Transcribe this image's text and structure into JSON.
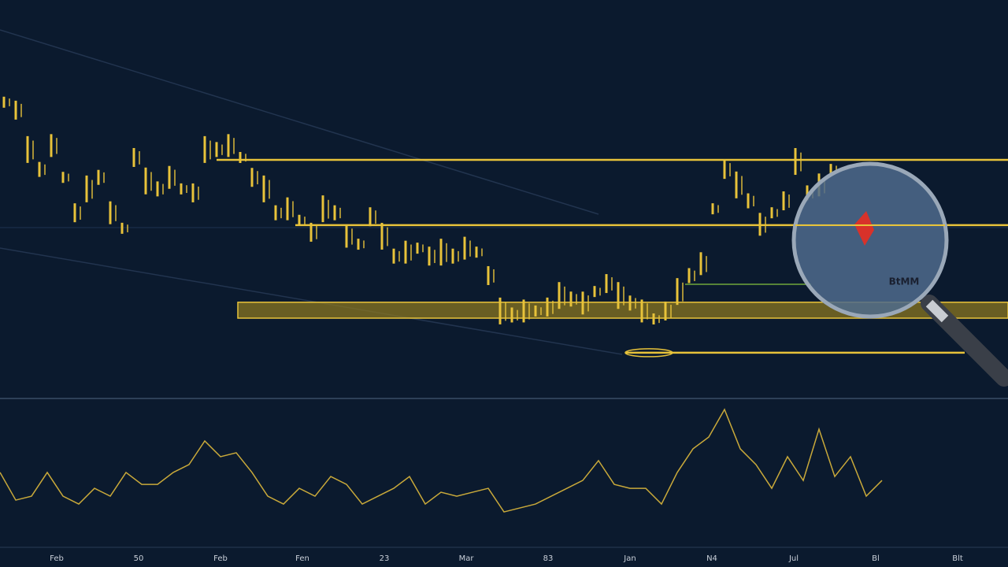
{
  "chart_data": [
    {
      "type": "price-ticks",
      "color": "#e8c33a",
      "ylim": [
        0,
        100
      ],
      "values": [
        74.3,
        72.3,
        62.4,
        57.4,
        63.4,
        55.4,
        46.5,
        52.5,
        55.4,
        46.5,
        42.6,
        60.4,
        54.5,
        52.5,
        55.4,
        52.5,
        51.5,
        62.4,
        62.4,
        63.4,
        60.4,
        55.4,
        52.5,
        46.5,
        47.5,
        44.6,
        41.6,
        47.5,
        46.5,
        40.6,
        38.6,
        45.5,
        40.6,
        35.6,
        36.6,
        37.6,
        35.6,
        36.6,
        35.6,
        37.6,
        36.6,
        30.7,
        21.8,
        20.8,
        21.8,
        21.8,
        22.8,
        25.7,
        24.8,
        23.8,
        26.7,
        28.7,
        25.7,
        23.8,
        21.8,
        19.8,
        21.8,
        26.7,
        30.7,
        33.7,
        47.5,
        57.4,
        53.5,
        49.5,
        43.6,
        46.5,
        49.5,
        59.4,
        51.5,
        53.5,
        57.4
      ],
      "levels": [
        59.8,
        43.4,
        11.3
      ],
      "band": [
        20.0,
        24.0
      ],
      "annotation": "BtMM"
    },
    {
      "type": "line",
      "color": "#c9a93a",
      "ylim": [
        0,
        100
      ],
      "values": [
        51.4,
        32.4,
        35.1,
        51.4,
        35.1,
        29.7,
        40.5,
        35.1,
        51.4,
        43.2,
        43.2,
        51.4,
        56.8,
        73.0,
        62.2,
        64.9,
        51.4,
        35.1,
        29.7,
        40.5,
        35.1,
        48.6,
        43.2,
        29.7,
        35.1,
        40.5,
        48.6,
        29.7,
        37.8,
        35.1,
        37.8,
        40.5,
        24.3,
        27.0,
        29.7,
        35.1,
        40.5,
        45.9,
        59.5,
        43.2,
        40.5,
        40.5,
        29.7,
        51.4,
        67.6,
        75.7,
        94.6,
        67.6,
        56.8,
        40.5,
        62.2,
        45.9,
        81.1,
        48.6,
        62.2,
        35.1,
        45.9
      ],
      "xticklabels": [
        "Feb",
        "50",
        "Feb",
        "Fen",
        "23",
        "Mar",
        "83",
        "Jan",
        "N4",
        "Jul",
        "Bl",
        "Blt"
      ]
    }
  ]
}
